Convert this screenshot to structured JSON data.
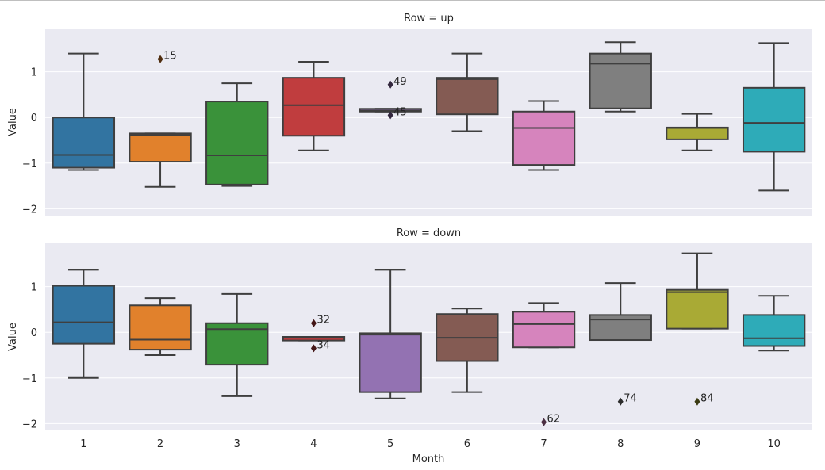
{
  "chart_data": {
    "type": "box",
    "xlabel": "Month",
    "ylabel": "Value",
    "categories": [
      "1",
      "2",
      "3",
      "4",
      "5",
      "6",
      "7",
      "8",
      "9",
      "10"
    ],
    "colors": [
      "#3274a1",
      "#e1812c",
      "#3a923a",
      "#c03d3e",
      "#9372b2",
      "#845b53",
      "#d684bd",
      "#7f7f7f",
      "#a9aa35",
      "#2eabb8"
    ],
    "grid": true,
    "background": "#eaeaf2",
    "ylim": [
      -2.15,
      1.95
    ],
    "yticks": [
      -2,
      -1,
      0,
      1
    ],
    "yticklabels": [
      "−2",
      "−1",
      "0",
      "1"
    ],
    "facets": [
      {
        "title": "Row = up",
        "boxes": [
          {
            "min": -1.15,
            "q1": -1.1,
            "median": -0.82,
            "q3": 0.0,
            "max": 1.4,
            "outliers": []
          },
          {
            "min": -1.52,
            "q1": -0.97,
            "median": -0.38,
            "q3": -0.35,
            "max": -0.35,
            "outliers": [
              {
                "value": 1.28,
                "label": "15"
              }
            ]
          },
          {
            "min": -1.5,
            "q1": -1.47,
            "median": -0.83,
            "q3": 0.35,
            "max": 0.75,
            "outliers": []
          },
          {
            "min": -0.72,
            "q1": -0.4,
            "median": 0.27,
            "q3": 0.87,
            "max": 1.22,
            "outliers": []
          },
          {
            "min": 0.13,
            "q1": 0.13,
            "median": 0.15,
            "q3": 0.19,
            "max": 0.19,
            "outliers": [
              {
                "value": 0.72,
                "label": "49"
              },
              {
                "value": 0.05,
                "label": "45"
              }
            ]
          },
          {
            "min": -0.3,
            "q1": 0.07,
            "median": 0.84,
            "q3": 0.87,
            "max": 1.4,
            "outliers": []
          },
          {
            "min": -1.15,
            "q1": -1.04,
            "median": -0.23,
            "q3": 0.13,
            "max": 0.36,
            "outliers": []
          },
          {
            "min": 0.13,
            "q1": 0.2,
            "median": 1.18,
            "q3": 1.4,
            "max": 1.65,
            "outliers": []
          },
          {
            "min": -0.72,
            "q1": -0.48,
            "median": -0.23,
            "q3": -0.22,
            "max": 0.08,
            "outliers": []
          },
          {
            "min": -1.6,
            "q1": -0.75,
            "median": -0.12,
            "q3": 0.65,
            "max": 1.63,
            "outliers": []
          }
        ]
      },
      {
        "title": "Row = down",
        "boxes": [
          {
            "min": -1.0,
            "q1": -0.25,
            "median": 0.22,
            "q3": 1.02,
            "max": 1.37,
            "outliers": []
          },
          {
            "min": -0.5,
            "q1": -0.38,
            "median": -0.16,
            "q3": 0.59,
            "max": 0.75,
            "outliers": []
          },
          {
            "min": -1.4,
            "q1": -0.71,
            "median": 0.07,
            "q3": 0.2,
            "max": 0.84,
            "outliers": []
          },
          {
            "min": -0.18,
            "q1": -0.18,
            "median": -0.12,
            "q3": -0.1,
            "max": -0.1,
            "outliers": [
              {
                "value": 0.2,
                "label": "32"
              },
              {
                "value": -0.35,
                "label": "34"
              }
            ]
          },
          {
            "min": -1.45,
            "q1": -1.31,
            "median": -0.05,
            "q3": -0.02,
            "max": 1.37,
            "outliers": []
          },
          {
            "min": -1.31,
            "q1": -0.63,
            "median": -0.12,
            "q3": 0.4,
            "max": 0.52,
            "outliers": []
          },
          {
            "min": -0.33,
            "q1": -0.33,
            "median": 0.18,
            "q3": 0.45,
            "max": 0.64,
            "outliers": [
              {
                "value": -1.97,
                "label": "62"
              }
            ]
          },
          {
            "min": -0.17,
            "q1": -0.17,
            "median": 0.28,
            "q3": 0.38,
            "max": 1.08,
            "outliers": [
              {
                "value": -1.52,
                "label": "74"
              }
            ]
          },
          {
            "min": 0.08,
            "q1": 0.08,
            "median": 0.88,
            "q3": 0.93,
            "max": 1.73,
            "outliers": [
              {
                "value": -1.52,
                "label": "84"
              }
            ]
          },
          {
            "min": -0.4,
            "q1": -0.3,
            "median": -0.13,
            "q3": 0.38,
            "max": 0.8,
            "outliers": []
          }
        ]
      }
    ]
  }
}
